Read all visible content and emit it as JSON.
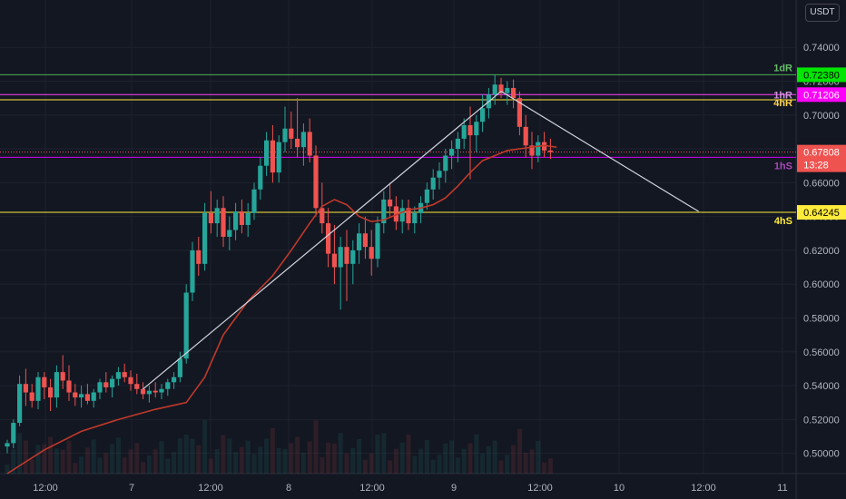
{
  "currency": "USDT",
  "colors": {
    "background": "#131722",
    "grid": "#1e222d",
    "up": "#26a69a",
    "down": "#ef5350",
    "ma": "#c0392b",
    "trendline": "#d1d4dc"
  },
  "chart_data": {
    "type": "candlestick",
    "ylim": [
      0.488,
      0.768
    ],
    "y_ticks": [
      "0.74000",
      "0.72000",
      "0.70000",
      "0.68000",
      "0.66000",
      "0.64000",
      "0.62000",
      "0.60000",
      "0.58000",
      "0.56000",
      "0.54000",
      "0.52000",
      "0.50000"
    ],
    "x_ticks": [
      "12:00",
      "7",
      "12:00",
      "8",
      "12:00",
      "9",
      "12:00",
      "10",
      "12:00",
      "11"
    ],
    "levels": [
      {
        "name": "1dR",
        "price": 0.7238,
        "label": "0.72380",
        "color": "#4caf50",
        "tag_color": "#66bb6a",
        "badge_bg": "#00e600",
        "badge_fg": "#000000"
      },
      {
        "name": "1hR",
        "price": 0.71206,
        "label": "0.71206",
        "color": "#ff40ff",
        "tag_color": "#ce93d8",
        "badge_bg": "#ff00ff",
        "badge_fg": "#ffffff"
      },
      {
        "name": "4hR",
        "price": 0.709,
        "label": "",
        "color": "#ffeb3b",
        "tag_color": "#ffd54f",
        "badge_bg": "",
        "badge_fg": ""
      },
      {
        "name": "1hS",
        "price": 0.675,
        "label": "",
        "color": "#d500f9",
        "tag_color": "#ab47bc",
        "badge_bg": "",
        "badge_fg": ""
      },
      {
        "name": "4hS",
        "price": 0.64245,
        "label": "0.64245",
        "color": "#ffeb3b",
        "tag_color": "#ffeb3b",
        "badge_bg": "#ffeb3b",
        "badge_fg": "#000000"
      }
    ],
    "current_price": {
      "value": "0.67808",
      "countdown": "13:28",
      "badge_bg": "#ef5350",
      "level": 0.67808
    },
    "candles": [
      [
        0.504,
        0.508,
        0.5,
        0.506
      ],
      [
        0.506,
        0.52,
        0.503,
        0.518
      ],
      [
        0.518,
        0.546,
        0.516,
        0.541
      ],
      [
        0.541,
        0.55,
        0.528,
        0.536
      ],
      [
        0.536,
        0.541,
        0.527,
        0.531
      ],
      [
        0.531,
        0.548,
        0.526,
        0.545
      ],
      [
        0.545,
        0.548,
        0.532,
        0.539
      ],
      [
        0.539,
        0.544,
        0.525,
        0.533
      ],
      [
        0.533,
        0.552,
        0.527,
        0.548
      ],
      [
        0.548,
        0.558,
        0.538,
        0.543
      ],
      [
        0.543,
        0.552,
        0.531,
        0.536
      ],
      [
        0.536,
        0.541,
        0.528,
        0.533
      ],
      [
        0.533,
        0.54,
        0.527,
        0.535
      ],
      [
        0.535,
        0.541,
        0.529,
        0.531
      ],
      [
        0.531,
        0.538,
        0.527,
        0.536
      ],
      [
        0.536,
        0.544,
        0.532,
        0.542
      ],
      [
        0.542,
        0.548,
        0.536,
        0.539
      ],
      [
        0.539,
        0.546,
        0.533,
        0.544
      ],
      [
        0.544,
        0.551,
        0.54,
        0.548
      ],
      [
        0.548,
        0.553,
        0.542,
        0.545
      ],
      [
        0.545,
        0.549,
        0.537,
        0.541
      ],
      [
        0.541,
        0.547,
        0.535,
        0.538
      ],
      [
        0.538,
        0.542,
        0.532,
        0.535
      ],
      [
        0.535,
        0.54,
        0.53,
        0.537
      ],
      [
        0.537,
        0.542,
        0.533,
        0.536
      ],
      [
        0.536,
        0.541,
        0.532,
        0.538
      ],
      [
        0.538,
        0.544,
        0.534,
        0.542
      ],
      [
        0.542,
        0.548,
        0.538,
        0.545
      ],
      [
        0.545,
        0.56,
        0.542,
        0.556
      ],
      [
        0.556,
        0.6,
        0.553,
        0.595
      ],
      [
        0.595,
        0.625,
        0.59,
        0.62
      ],
      [
        0.62,
        0.628,
        0.605,
        0.612
      ],
      [
        0.612,
        0.648,
        0.608,
        0.642
      ],
      [
        0.642,
        0.655,
        0.63,
        0.636
      ],
      [
        0.636,
        0.65,
        0.628,
        0.645
      ],
      [
        0.645,
        0.652,
        0.622,
        0.628
      ],
      [
        0.628,
        0.64,
        0.62,
        0.632
      ],
      [
        0.632,
        0.648,
        0.626,
        0.643
      ],
      [
        0.643,
        0.65,
        0.63,
        0.635
      ],
      [
        0.635,
        0.648,
        0.628,
        0.642
      ],
      [
        0.642,
        0.66,
        0.638,
        0.656
      ],
      [
        0.656,
        0.675,
        0.65,
        0.67
      ],
      [
        0.67,
        0.69,
        0.664,
        0.685
      ],
      [
        0.685,
        0.694,
        0.66,
        0.666
      ],
      [
        0.666,
        0.688,
        0.66,
        0.684
      ],
      [
        0.684,
        0.705,
        0.678,
        0.692
      ],
      [
        0.692,
        0.702,
        0.68,
        0.686
      ],
      [
        0.686,
        0.71,
        0.675,
        0.681
      ],
      [
        0.681,
        0.695,
        0.67,
        0.69
      ],
      [
        0.69,
        0.698,
        0.672,
        0.676
      ],
      [
        0.676,
        0.682,
        0.64,
        0.645
      ],
      [
        0.645,
        0.66,
        0.63,
        0.636
      ],
      [
        0.636,
        0.645,
        0.61,
        0.618
      ],
      [
        0.618,
        0.635,
        0.6,
        0.61
      ],
      [
        0.61,
        0.628,
        0.585,
        0.622
      ],
      [
        0.622,
        0.632,
        0.59,
        0.612
      ],
      [
        0.612,
        0.626,
        0.6,
        0.62
      ],
      [
        0.62,
        0.636,
        0.612,
        0.63
      ],
      [
        0.63,
        0.64,
        0.615,
        0.622
      ],
      [
        0.622,
        0.632,
        0.605,
        0.615
      ],
      [
        0.615,
        0.64,
        0.61,
        0.636
      ],
      [
        0.636,
        0.655,
        0.63,
        0.65
      ],
      [
        0.65,
        0.66,
        0.64,
        0.646
      ],
      [
        0.646,
        0.652,
        0.632,
        0.637
      ],
      [
        0.637,
        0.65,
        0.63,
        0.645
      ],
      [
        0.645,
        0.65,
        0.632,
        0.636
      ],
      [
        0.636,
        0.646,
        0.63,
        0.642
      ],
      [
        0.642,
        0.652,
        0.636,
        0.648
      ],
      [
        0.648,
        0.66,
        0.644,
        0.656
      ],
      [
        0.656,
        0.668,
        0.65,
        0.663
      ],
      [
        0.663,
        0.672,
        0.656,
        0.667
      ],
      [
        0.667,
        0.68,
        0.66,
        0.676
      ],
      [
        0.676,
        0.685,
        0.668,
        0.68
      ],
      [
        0.68,
        0.69,
        0.672,
        0.686
      ],
      [
        0.686,
        0.698,
        0.68,
        0.694
      ],
      [
        0.694,
        0.705,
        0.662,
        0.688
      ],
      [
        0.688,
        0.7,
        0.678,
        0.696
      ],
      [
        0.696,
        0.712,
        0.69,
        0.704
      ],
      [
        0.704,
        0.716,
        0.698,
        0.712
      ],
      [
        0.712,
        0.724,
        0.706,
        0.718
      ],
      [
        0.718,
        0.722,
        0.71,
        0.713
      ],
      [
        0.713,
        0.72,
        0.706,
        0.716
      ],
      [
        0.716,
        0.721,
        0.704,
        0.71
      ],
      [
        0.71,
        0.714,
        0.688,
        0.693
      ],
      [
        0.693,
        0.7,
        0.675,
        0.682
      ],
      [
        0.682,
        0.69,
        0.668,
        0.676
      ],
      [
        0.676,
        0.688,
        0.672,
        0.684
      ],
      [
        0.684,
        0.69,
        0.675,
        0.679
      ],
      [
        0.679,
        0.686,
        0.674,
        0.678
      ]
    ],
    "ma_line": [
      [
        0,
        0.488
      ],
      [
        6,
        0.502
      ],
      [
        12,
        0.513
      ],
      [
        18,
        0.52
      ],
      [
        24,
        0.526
      ],
      [
        29,
        0.53
      ],
      [
        32,
        0.545
      ],
      [
        35,
        0.57
      ],
      [
        39,
        0.59
      ],
      [
        43,
        0.605
      ],
      [
        46,
        0.62
      ],
      [
        49,
        0.636
      ],
      [
        51,
        0.646
      ],
      [
        53,
        0.65
      ],
      [
        55,
        0.647
      ],
      [
        57,
        0.64
      ],
      [
        59,
        0.637
      ],
      [
        61,
        0.638
      ],
      [
        63,
        0.641
      ],
      [
        65,
        0.644
      ],
      [
        67,
        0.645
      ],
      [
        69,
        0.647
      ],
      [
        71,
        0.651
      ],
      [
        73,
        0.658
      ],
      [
        75,
        0.666
      ],
      [
        77,
        0.673
      ],
      [
        79,
        0.676
      ],
      [
        81,
        0.679
      ],
      [
        83,
        0.68
      ],
      [
        85,
        0.681
      ],
      [
        87,
        0.682
      ],
      [
        89,
        0.681
      ]
    ],
    "trendlines": [
      {
        "from": [
          22,
          0.538
        ],
        "to": [
          80,
          0.714
        ]
      },
      {
        "from": [
          80,
          0.714
        ],
        "to": [
          112,
          0.643
        ]
      }
    ],
    "volume_note": "volume bars"
  }
}
